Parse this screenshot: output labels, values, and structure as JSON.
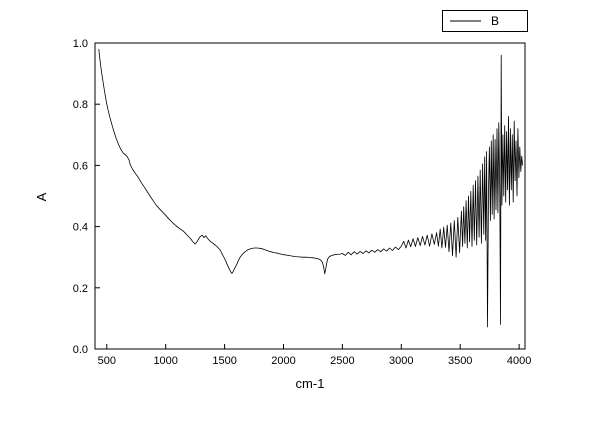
{
  "figure": {
    "background": "#ffffff",
    "frame_color": "#000000"
  },
  "chart_data": {
    "type": "line",
    "title": "",
    "xlabel": "cm-1",
    "ylabel": "A",
    "xlim": [
      400,
      4050
    ],
    "ylim": [
      0.0,
      1.0
    ],
    "x_ticks": [
      500,
      1000,
      1500,
      2000,
      2500,
      3000,
      3500,
      4000
    ],
    "x_tick_labels": [
      "500",
      "1000",
      "1500",
      "2000",
      "2500",
      "3000",
      "3500",
      "4000"
    ],
    "y_ticks": [
      0.0,
      0.2,
      0.4,
      0.6,
      0.8,
      1.0
    ],
    "y_tick_labels": [
      "0.0",
      "0.2",
      "0.4",
      "0.6",
      "0.8",
      "1.0"
    ],
    "grid": false,
    "legend": {
      "position": "top-right",
      "entries": [
        {
          "label": "B",
          "color": "#000000"
        }
      ]
    },
    "series": [
      {
        "name": "B",
        "color": "#000000",
        "points": [
          [
            432,
            0.98
          ],
          [
            440,
            0.952
          ],
          [
            450,
            0.92
          ],
          [
            460,
            0.893
          ],
          [
            470,
            0.87
          ],
          [
            480,
            0.845
          ],
          [
            490,
            0.822
          ],
          [
            500,
            0.8
          ],
          [
            515,
            0.775
          ],
          [
            530,
            0.752
          ],
          [
            545,
            0.731
          ],
          [
            560,
            0.712
          ],
          [
            580,
            0.688
          ],
          [
            600,
            0.668
          ],
          [
            620,
            0.652
          ],
          [
            640,
            0.64
          ],
          [
            660,
            0.634
          ],
          [
            675,
            0.628
          ],
          [
            690,
            0.616
          ],
          [
            700,
            0.602
          ],
          [
            720,
            0.587
          ],
          [
            740,
            0.575
          ],
          [
            760,
            0.565
          ],
          [
            780,
            0.552
          ],
          [
            800,
            0.54
          ],
          [
            825,
            0.525
          ],
          [
            850,
            0.51
          ],
          [
            875,
            0.495
          ],
          [
            900,
            0.481
          ],
          [
            925,
            0.468
          ],
          [
            950,
            0.457
          ],
          [
            975,
            0.447
          ],
          [
            1000,
            0.437
          ],
          [
            1030,
            0.424
          ],
          [
            1060,
            0.412
          ],
          [
            1090,
            0.402
          ],
          [
            1120,
            0.393
          ],
          [
            1150,
            0.385
          ],
          [
            1180,
            0.373
          ],
          [
            1210,
            0.361
          ],
          [
            1230,
            0.351
          ],
          [
            1250,
            0.343
          ],
          [
            1265,
            0.35
          ],
          [
            1280,
            0.36
          ],
          [
            1295,
            0.368
          ],
          [
            1310,
            0.372
          ],
          [
            1325,
            0.364
          ],
          [
            1340,
            0.37
          ],
          [
            1355,
            0.362
          ],
          [
            1370,
            0.355
          ],
          [
            1385,
            0.35
          ],
          [
            1400,
            0.346
          ],
          [
            1420,
            0.34
          ],
          [
            1440,
            0.333
          ],
          [
            1460,
            0.325
          ],
          [
            1480,
            0.31
          ],
          [
            1495,
            0.299
          ],
          [
            1510,
            0.287
          ],
          [
            1525,
            0.274
          ],
          [
            1540,
            0.261
          ],
          [
            1552,
            0.252
          ],
          [
            1562,
            0.247
          ],
          [
            1572,
            0.253
          ],
          [
            1585,
            0.263
          ],
          [
            1600,
            0.274
          ],
          [
            1615,
            0.287
          ],
          [
            1632,
            0.3
          ],
          [
            1650,
            0.309
          ],
          [
            1668,
            0.316
          ],
          [
            1685,
            0.321
          ],
          [
            1700,
            0.325
          ],
          [
            1725,
            0.328
          ],
          [
            1750,
            0.33
          ],
          [
            1775,
            0.33
          ],
          [
            1800,
            0.329
          ],
          [
            1830,
            0.326
          ],
          [
            1860,
            0.322
          ],
          [
            1890,
            0.318
          ],
          [
            1920,
            0.315
          ],
          [
            1950,
            0.313
          ],
          [
            1980,
            0.31
          ],
          [
            2010,
            0.308
          ],
          [
            2040,
            0.306
          ],
          [
            2070,
            0.304
          ],
          [
            2100,
            0.302
          ],
          [
            2130,
            0.301
          ],
          [
            2160,
            0.3
          ],
          [
            2190,
            0.3
          ],
          [
            2220,
            0.299
          ],
          [
            2250,
            0.298
          ],
          [
            2280,
            0.296
          ],
          [
            2300,
            0.294
          ],
          [
            2315,
            0.291
          ],
          [
            2330,
            0.283
          ],
          [
            2340,
            0.271
          ],
          [
            2350,
            0.246
          ],
          [
            2358,
            0.261
          ],
          [
            2366,
            0.279
          ],
          [
            2375,
            0.294
          ],
          [
            2390,
            0.302
          ],
          [
            2410,
            0.306
          ],
          [
            2430,
            0.308
          ],
          [
            2455,
            0.309
          ],
          [
            2480,
            0.31
          ],
          [
            2500,
            0.312
          ],
          [
            2525,
            0.306
          ],
          [
            2550,
            0.316
          ],
          [
            2575,
            0.308
          ],
          [
            2600,
            0.318
          ],
          [
            2625,
            0.31
          ],
          [
            2650,
            0.319
          ],
          [
            2675,
            0.312
          ],
          [
            2700,
            0.321
          ],
          [
            2725,
            0.314
          ],
          [
            2750,
            0.323
          ],
          [
            2775,
            0.316
          ],
          [
            2800,
            0.325
          ],
          [
            2825,
            0.318
          ],
          [
            2850,
            0.327
          ],
          [
            2875,
            0.32
          ],
          [
            2900,
            0.33
          ],
          [
            2925,
            0.322
          ],
          [
            2950,
            0.333
          ],
          [
            2975,
            0.325
          ],
          [
            3000,
            0.336
          ],
          [
            3020,
            0.352
          ],
          [
            3040,
            0.33
          ],
          [
            3060,
            0.356
          ],
          [
            3080,
            0.334
          ],
          [
            3100,
            0.36
          ],
          [
            3120,
            0.335
          ],
          [
            3140,
            0.364
          ],
          [
            3160,
            0.338
          ],
          [
            3180,
            0.368
          ],
          [
            3200,
            0.34
          ],
          [
            3220,
            0.372
          ],
          [
            3240,
            0.336
          ],
          [
            3260,
            0.376
          ],
          [
            3280,
            0.342
          ],
          [
            3300,
            0.38
          ],
          [
            3315,
            0.336
          ],
          [
            3330,
            0.392
          ],
          [
            3345,
            0.33
          ],
          [
            3360,
            0.398
          ],
          [
            3375,
            0.332
          ],
          [
            3390,
            0.405
          ],
          [
            3405,
            0.318
          ],
          [
            3420,
            0.412
          ],
          [
            3435,
            0.305
          ],
          [
            3450,
            0.42
          ],
          [
            3465,
            0.3
          ],
          [
            3480,
            0.43
          ],
          [
            3495,
            0.315
          ],
          [
            3510,
            0.45
          ],
          [
            3520,
            0.335
          ],
          [
            3530,
            0.465
          ],
          [
            3540,
            0.345
          ],
          [
            3550,
            0.485
          ],
          [
            3560,
            0.33
          ],
          [
            3570,
            0.5
          ],
          [
            3580,
            0.35
          ],
          [
            3590,
            0.515
          ],
          [
            3600,
            0.335
          ],
          [
            3610,
            0.535
          ],
          [
            3620,
            0.355
          ],
          [
            3630,
            0.55
          ],
          [
            3640,
            0.34
          ],
          [
            3650,
            0.565
          ],
          [
            3660,
            0.365
          ],
          [
            3670,
            0.585
          ],
          [
            3680,
            0.345
          ],
          [
            3690,
            0.605
          ],
          [
            3700,
            0.375
          ],
          [
            3708,
            0.628
          ],
          [
            3716,
            0.355
          ],
          [
            3724,
            0.645
          ],
          [
            3732,
            0.072
          ],
          [
            3740,
            0.52
          ],
          [
            3748,
            0.66
          ],
          [
            3756,
            0.42
          ],
          [
            3764,
            0.68
          ],
          [
            3772,
            0.44
          ],
          [
            3780,
            0.7
          ],
          [
            3788,
            0.425
          ],
          [
            3796,
            0.685
          ],
          [
            3804,
            0.455
          ],
          [
            3812,
            0.72
          ],
          [
            3820,
            0.445
          ],
          [
            3828,
            0.74
          ],
          [
            3836,
            0.5
          ],
          [
            3842,
            0.08
          ],
          [
            3848,
            0.96
          ],
          [
            3854,
            0.47
          ],
          [
            3862,
            0.7
          ],
          [
            3870,
            0.5
          ],
          [
            3878,
            0.73
          ],
          [
            3886,
            0.48
          ],
          [
            3894,
            0.71
          ],
          [
            3902,
            0.52
          ],
          [
            3910,
            0.76
          ],
          [
            3918,
            0.47
          ],
          [
            3926,
            0.72
          ],
          [
            3934,
            0.52
          ],
          [
            3942,
            0.7
          ],
          [
            3950,
            0.48
          ],
          [
            3958,
            0.745
          ],
          [
            3966,
            0.55
          ],
          [
            3974,
            0.68
          ],
          [
            3982,
            0.5
          ],
          [
            3990,
            0.72
          ],
          [
            3998,
            0.56
          ],
          [
            4006,
            0.66
          ],
          [
            4014,
            0.58
          ],
          [
            4022,
            0.63
          ],
          [
            4030,
            0.6
          ]
        ]
      }
    ]
  }
}
